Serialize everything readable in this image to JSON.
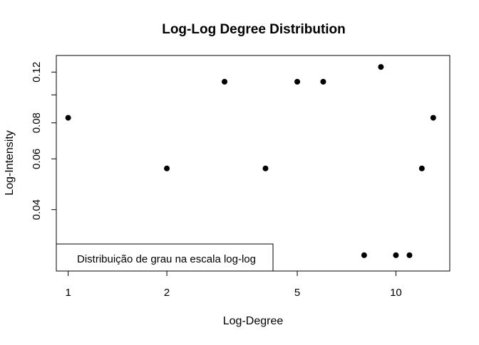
{
  "chart_data": {
    "type": "scatter",
    "title": "Log-Log Degree Distribution",
    "xlabel": "Log-Degree",
    "ylabel": "Log-Intensity",
    "x_scale": "log",
    "y_scale": "log",
    "xlim": [
      0.92,
      14.6
    ],
    "ylim": [
      0.0245,
      0.137
    ],
    "x_ticks": [
      1,
      2,
      5,
      10
    ],
    "x_tick_labels": [
      "1",
      "2",
      "5",
      "10"
    ],
    "y_ticks": [
      0.04,
      0.06,
      0.08,
      0.12
    ],
    "y_tick_labels": [
      "0.04",
      "0.06",
      "0.08",
      "0.12"
    ],
    "y_minor_ticks": [
      0.1
    ],
    "grid": false,
    "legend": {
      "text": "Distribuição de grau na escala log-log",
      "position": "bottom-left"
    },
    "series": [
      {
        "points": [
          {
            "x": 1,
            "y": 0.0833
          },
          {
            "x": 2,
            "y": 0.0556
          },
          {
            "x": 3,
            "y": 0.1111
          },
          {
            "x": 4,
            "y": 0.0556
          },
          {
            "x": 5,
            "y": 0.1111
          },
          {
            "x": 6,
            "y": 0.1111
          },
          {
            "x": 8,
            "y": 0.0278
          },
          {
            "x": 9,
            "y": 0.125
          },
          {
            "x": 10,
            "y": 0.0278
          },
          {
            "x": 11,
            "y": 0.0278
          },
          {
            "x": 12,
            "y": 0.0556
          },
          {
            "x": 13,
            "y": 0.0833
          }
        ]
      }
    ]
  }
}
